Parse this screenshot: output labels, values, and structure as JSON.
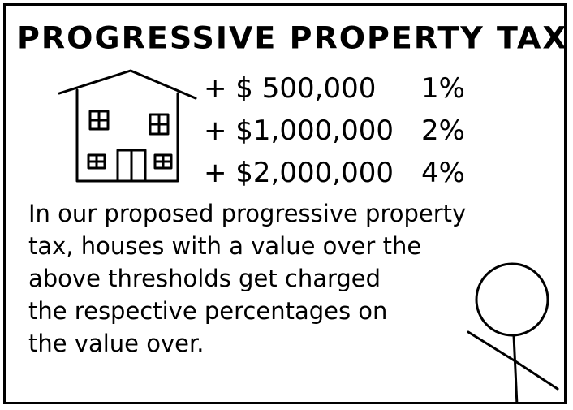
{
  "comic": {
    "title": "PROGRESSIVE PROPERTY TAX",
    "tiers": [
      {
        "amount": "+ $ 500,000",
        "rate": "1%"
      },
      {
        "amount": "+ $1,000,000",
        "rate": "2%"
      },
      {
        "amount": "+ $2,000,000",
        "rate": "4%"
      }
    ],
    "caption_lines": [
      "In our proposed progressive property",
      "tax, houses with a value over the",
      "above thresholds get charged",
      "the respective percentages on",
      "the value over."
    ]
  }
}
